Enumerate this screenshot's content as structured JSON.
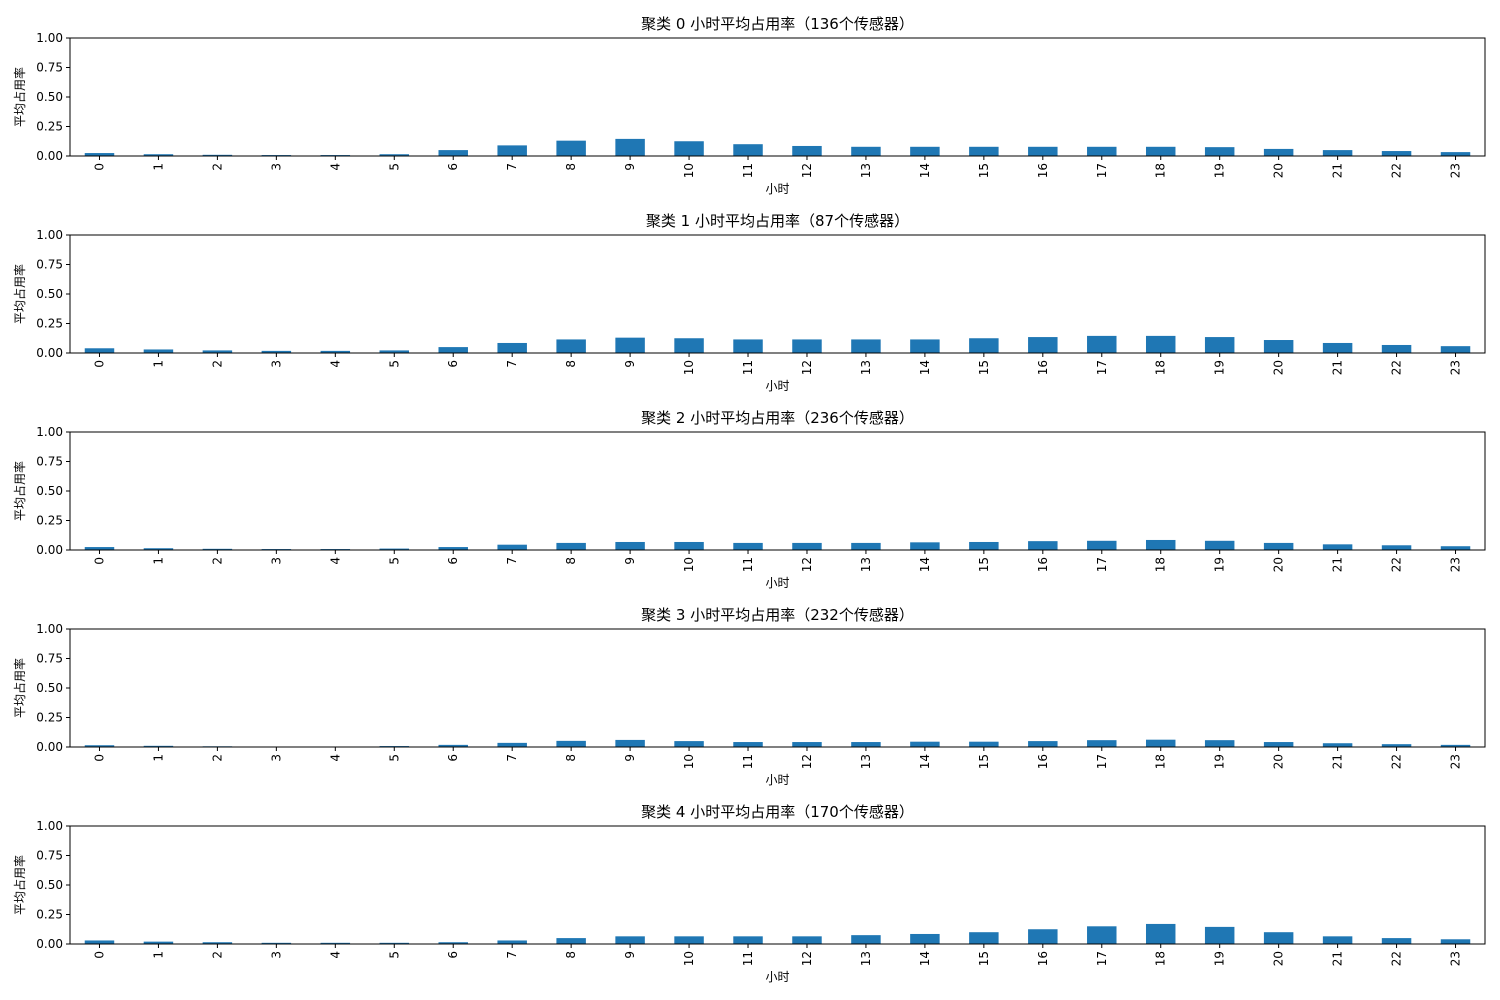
{
  "chart_data": [
    {
      "type": "bar",
      "title": "聚类 0 小时平均占用率（136个传感器）",
      "xlabel": "小时",
      "ylabel": "平均占用率",
      "ylim": [
        0,
        1
      ],
      "yticks": [
        "0.00",
        "0.25",
        "0.50",
        "0.75",
        "1.00"
      ],
      "categories": [
        "0",
        "1",
        "2",
        "3",
        "4",
        "5",
        "6",
        "7",
        "8",
        "9",
        "10",
        "11",
        "12",
        "13",
        "14",
        "15",
        "16",
        "17",
        "18",
        "19",
        "20",
        "21",
        "22",
        "23"
      ],
      "values": [
        0.025,
        0.015,
        0.01,
        0.008,
        0.008,
        0.015,
        0.05,
        0.09,
        0.13,
        0.145,
        0.125,
        0.1,
        0.085,
        0.078,
        0.078,
        0.078,
        0.078,
        0.078,
        0.078,
        0.075,
        0.06,
        0.05,
        0.042,
        0.033
      ],
      "color": "#1f77b4",
      "grid": false,
      "legend": "none"
    },
    {
      "type": "bar",
      "title": "聚类 1 小时平均占用率（87个传感器）",
      "xlabel": "小时",
      "ylabel": "平均占用率",
      "ylim": [
        0,
        1
      ],
      "yticks": [
        "0.00",
        "0.25",
        "0.50",
        "0.75",
        "1.00"
      ],
      "categories": [
        "0",
        "1",
        "2",
        "3",
        "4",
        "5",
        "6",
        "7",
        "8",
        "9",
        "10",
        "11",
        "12",
        "13",
        "14",
        "15",
        "16",
        "17",
        "18",
        "19",
        "20",
        "21",
        "22",
        "23"
      ],
      "values": [
        0.04,
        0.03,
        0.022,
        0.018,
        0.018,
        0.022,
        0.05,
        0.085,
        0.115,
        0.13,
        0.125,
        0.115,
        0.115,
        0.115,
        0.115,
        0.125,
        0.135,
        0.145,
        0.145,
        0.135,
        0.11,
        0.085,
        0.068,
        0.058
      ],
      "color": "#1f77b4",
      "grid": false,
      "legend": "none"
    },
    {
      "type": "bar",
      "title": "聚类 2 小时平均占用率（236个传感器）",
      "xlabel": "小时",
      "ylabel": "平均占用率",
      "ylim": [
        0,
        1
      ],
      "yticks": [
        "0.00",
        "0.25",
        "0.50",
        "0.75",
        "1.00"
      ],
      "categories": [
        "0",
        "1",
        "2",
        "3",
        "4",
        "5",
        "6",
        "7",
        "8",
        "9",
        "10",
        "11",
        "12",
        "13",
        "14",
        "15",
        "16",
        "17",
        "18",
        "19",
        "20",
        "21",
        "22",
        "23"
      ],
      "values": [
        0.025,
        0.015,
        0.01,
        0.008,
        0.008,
        0.012,
        0.025,
        0.045,
        0.06,
        0.068,
        0.068,
        0.06,
        0.06,
        0.06,
        0.065,
        0.068,
        0.075,
        0.078,
        0.085,
        0.078,
        0.06,
        0.048,
        0.04,
        0.032
      ],
      "color": "#1f77b4",
      "grid": false,
      "legend": "none"
    },
    {
      "type": "bar",
      "title": "聚类 3 小时平均占用率（232个传感器）",
      "xlabel": "小时",
      "ylabel": "平均占用率",
      "ylim": [
        0,
        1
      ],
      "yticks": [
        "0.00",
        "0.25",
        "0.50",
        "0.75",
        "1.00"
      ],
      "categories": [
        "0",
        "1",
        "2",
        "3",
        "4",
        "5",
        "6",
        "7",
        "8",
        "9",
        "10",
        "11",
        "12",
        "13",
        "14",
        "15",
        "16",
        "17",
        "18",
        "19",
        "20",
        "21",
        "22",
        "23"
      ],
      "values": [
        0.015,
        0.01,
        0.006,
        0.004,
        0.004,
        0.008,
        0.018,
        0.035,
        0.052,
        0.06,
        0.05,
        0.042,
        0.042,
        0.042,
        0.045,
        0.045,
        0.05,
        0.058,
        0.062,
        0.058,
        0.042,
        0.032,
        0.024,
        0.018
      ],
      "color": "#1f77b4",
      "grid": false,
      "legend": "none"
    },
    {
      "type": "bar",
      "title": "聚类 4 小时平均占用率（170个传感器）",
      "xlabel": "小时",
      "ylabel": "平均占用率",
      "ylim": [
        0,
        1
      ],
      "yticks": [
        "0.00",
        "0.25",
        "0.50",
        "0.75",
        "1.00"
      ],
      "categories": [
        "0",
        "1",
        "2",
        "3",
        "4",
        "5",
        "6",
        "7",
        "8",
        "9",
        "10",
        "11",
        "12",
        "13",
        "14",
        "15",
        "16",
        "17",
        "18",
        "19",
        "20",
        "21",
        "22",
        "23"
      ],
      "values": [
        0.03,
        0.02,
        0.015,
        0.01,
        0.01,
        0.01,
        0.015,
        0.03,
        0.05,
        0.065,
        0.065,
        0.065,
        0.065,
        0.075,
        0.085,
        0.1,
        0.125,
        0.15,
        0.17,
        0.145,
        0.1,
        0.065,
        0.05,
        0.04
      ],
      "color": "#1f77b4",
      "grid": false,
      "legend": "none"
    }
  ]
}
